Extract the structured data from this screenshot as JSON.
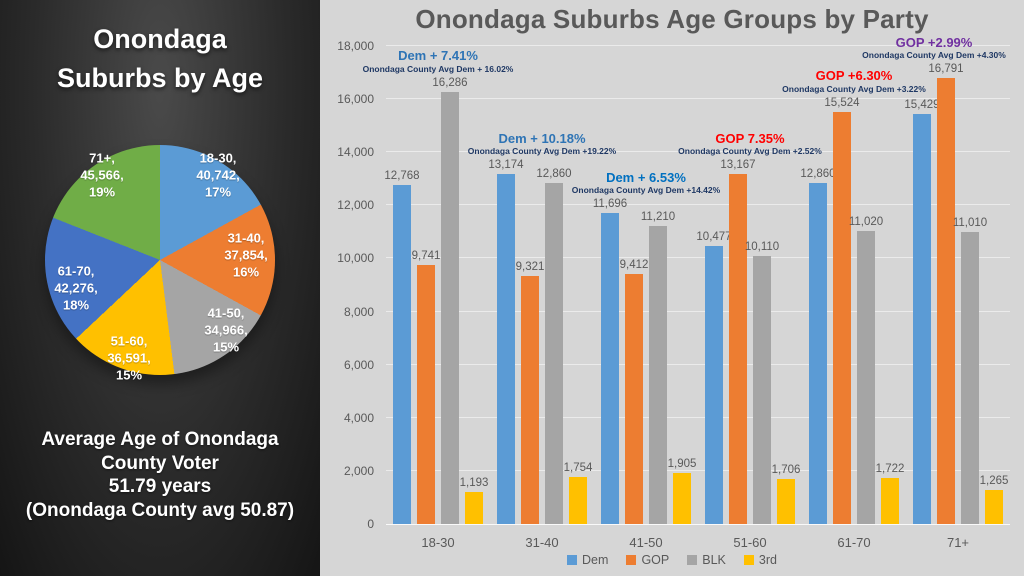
{
  "left_panel": {
    "title": "Onondaga\nSuburbs by Age",
    "footer": "Average Age of Onondaga\nCounty Voter\n51.79 years\n(Onondaga County avg 50.87)"
  },
  "chart_data": [
    {
      "type": "pie",
      "title": "Onondaga Suburbs by Age",
      "labels": [
        "18-30",
        "31-40",
        "41-50",
        "51-60",
        "61-70",
        "71+"
      ],
      "values": [
        40742,
        37854,
        34966,
        36591,
        42276,
        45566
      ],
      "percents": [
        17,
        16,
        15,
        15,
        18,
        19
      ],
      "colors": [
        "#5B9BD5",
        "#ED7D31",
        "#A5A5A5",
        "#FFC000",
        "#4472C4",
        "#70AD47"
      ],
      "footer_note": "Average Age of Onondaga County Voter 51.79 years (Onondaga County avg 50.87)"
    },
    {
      "type": "bar",
      "title": "Onondaga Suburbs Age Groups by Party",
      "categories": [
        "18-30",
        "31-40",
        "41-50",
        "51-60",
        "61-70",
        "71+"
      ],
      "series": [
        {
          "name": "Dem",
          "color": "#5B9BD5",
          "values": [
            12768,
            13174,
            11696,
            10477,
            12860,
            15429
          ]
        },
        {
          "name": "GOP",
          "color": "#ED7D31",
          "values": [
            9741,
            9321,
            9412,
            13167,
            15524,
            16791
          ]
        },
        {
          "name": "BLK",
          "color": "#A5A5A5",
          "values": [
            16286,
            12860,
            11210,
            10110,
            11020,
            11010
          ]
        },
        {
          "name": "3rd",
          "color": "#FFC000",
          "values": [
            1193,
            1754,
            1905,
            1706,
            1722,
            1265
          ]
        }
      ],
      "ylim": [
        0,
        18000
      ],
      "ytick_step": 2000,
      "grid": true,
      "legend_position": "bottom",
      "label_color": "#595959",
      "subtitle_color": "#1F3864",
      "annotations": [
        {
          "title": "Dem + 7.41%",
          "subtitle": "Onondaga County Avg Dem + 16.02%",
          "title_color": "#2E74B5",
          "key_series": 2
        },
        {
          "title": "Dem + 10.18%",
          "subtitle": "Onondaga County Avg Dem +19.22%",
          "title_color": "#2E74B5",
          "key_series": 0
        },
        {
          "title": "Dem + 6.53%",
          "subtitle": "Onondaga County Avg Dem +14.42%",
          "title_color": "#0070C0",
          "key_series": 0
        },
        {
          "title": "GOP 7.35%",
          "subtitle": "Onondaga County Avg Dem +2.52%",
          "title_color": "#FF0000",
          "key_series": 1
        },
        {
          "title": "GOP +6.30%",
          "subtitle": "Onondaga County Avg Dem +3.22%",
          "title_color": "#FF0000",
          "key_series": 1
        },
        {
          "title": "GOP +2.99%",
          "subtitle": "Onondaga County Avg Dem +4.30%",
          "title_color": "#7030A0",
          "key_series": 1
        }
      ]
    }
  ]
}
